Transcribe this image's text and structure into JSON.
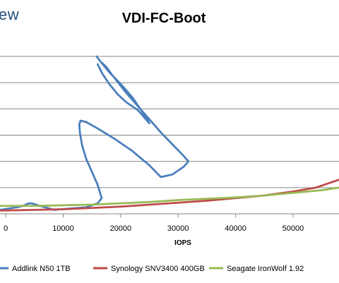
{
  "page": {
    "corner_text": "ew"
  },
  "chart_data": {
    "type": "line",
    "title": "VDI-FC-Boot",
    "xlabel": "IOPS",
    "ylabel": "",
    "xlim": [
      -1000,
      58000
    ],
    "ylim": [
      0,
      13.5
    ],
    "x_ticks": [
      0,
      10000,
      20000,
      30000,
      40000,
      50000
    ],
    "x_tick_labels": [
      "0",
      "10000",
      "20000",
      "30000",
      "40000",
      "50000"
    ],
    "y_gridlines": [
      0,
      2,
      4,
      6,
      8,
      10,
      12
    ],
    "grid": true,
    "legend_position": "bottom",
    "series": [
      {
        "name": "Addlink N50 1TB",
        "color": "#4a7ebb",
        "points": [
          [
            -1000,
            0.3
          ],
          [
            2000,
            0.5
          ],
          [
            3000,
            0.6
          ],
          [
            3500,
            0.7
          ],
          [
            4000,
            0.8
          ],
          [
            4500,
            0.8
          ],
          [
            6000,
            0.6
          ],
          [
            8500,
            0.3
          ],
          [
            11000,
            0.4
          ],
          [
            14000,
            0.5
          ],
          [
            16000,
            0.8
          ],
          [
            16700,
            1.2
          ],
          [
            16000,
            2.2
          ],
          [
            15000,
            3.2
          ],
          [
            14000,
            4.2
          ],
          [
            13300,
            5.2
          ],
          [
            12900,
            6.2
          ],
          [
            12800,
            6.8
          ],
          [
            13000,
            7.1
          ],
          [
            14000,
            7.0
          ],
          [
            16000,
            6.5
          ],
          [
            19000,
            5.7
          ],
          [
            22000,
            4.8
          ],
          [
            25000,
            3.7
          ],
          [
            27000,
            2.8
          ],
          [
            29000,
            3.0
          ],
          [
            31000,
            3.6
          ],
          [
            31800,
            4.0
          ],
          [
            31000,
            4.4
          ],
          [
            29000,
            5.3
          ],
          [
            27000,
            6.2
          ],
          [
            24000,
            7.7
          ],
          [
            21000,
            9.2
          ],
          [
            18500,
            10.6
          ],
          [
            17500,
            11.2
          ],
          [
            16500,
            11.6
          ],
          [
            15800,
            12.0
          ],
          [
            16500,
            11.6
          ],
          [
            18000,
            10.8
          ],
          [
            20000,
            9.9
          ],
          [
            22000,
            8.9
          ],
          [
            24500,
            7.3
          ],
          [
            25000,
            6.9
          ],
          [
            23000,
            7.9
          ],
          [
            21000,
            8.5
          ],
          [
            19500,
            9.1
          ],
          [
            18000,
            9.9
          ],
          [
            16800,
            10.7
          ],
          [
            16000,
            11.4
          ]
        ]
      },
      {
        "name": "Synology SNV3400 400GB",
        "color": "#be4b48",
        "points": [
          [
            -1000,
            0.25
          ],
          [
            5000,
            0.3
          ],
          [
            10000,
            0.35
          ],
          [
            15000,
            0.45
          ],
          [
            20000,
            0.55
          ],
          [
            25000,
            0.7
          ],
          [
            30000,
            0.85
          ],
          [
            35000,
            1.0
          ],
          [
            40000,
            1.2
          ],
          [
            45000,
            1.4
          ],
          [
            50000,
            1.7
          ],
          [
            54000,
            2.0
          ],
          [
            56000,
            2.3
          ],
          [
            58000,
            2.6
          ]
        ]
      },
      {
        "name": "Seagate IronWolf 1.92",
        "color": "#98b954",
        "points": [
          [
            -1000,
            0.6
          ],
          [
            5000,
            0.6
          ],
          [
            10000,
            0.65
          ],
          [
            15000,
            0.7
          ],
          [
            20000,
            0.8
          ],
          [
            25000,
            0.9
          ],
          [
            30000,
            1.05
          ],
          [
            35000,
            1.15
          ],
          [
            40000,
            1.25
          ],
          [
            45000,
            1.4
          ],
          [
            50000,
            1.6
          ],
          [
            55000,
            1.8
          ],
          [
            58000,
            2.0
          ]
        ]
      }
    ]
  }
}
